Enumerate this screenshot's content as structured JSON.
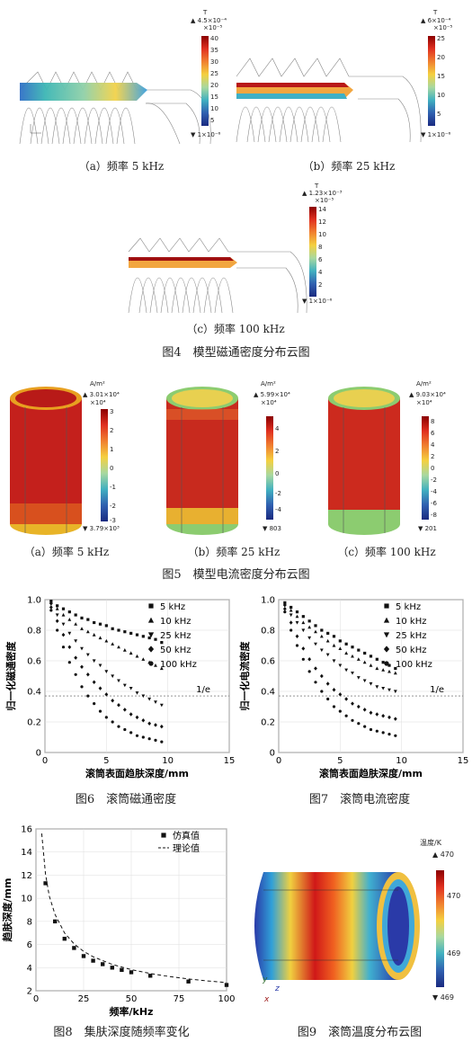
{
  "fig4": {
    "title": "图4　模型磁通密度分布云图",
    "panels": [
      {
        "caption": "（a）频率 5 kHz",
        "unit": "T",
        "max_label": "▲ 4.5×10⁻⁴",
        "exp": "×10⁻⁵",
        "ticks": [
          "40",
          "35",
          "30",
          "25",
          "20",
          "15",
          "10",
          "5"
        ],
        "min_label": "▼ 1×10⁻⁶"
      },
      {
        "caption": "（b）频率 25 kHz",
        "unit": "T",
        "max_label": "▲ 6×10⁻⁴",
        "exp": "×10⁻⁵",
        "ticks": [
          "25",
          "20",
          "15",
          "10",
          "5"
        ],
        "min_label": "▼ 1×10⁻⁶"
      },
      {
        "caption": "（c）频率 100 kHz",
        "unit": "T",
        "max_label": "▲ 1.23×10⁻³",
        "exp": "×10⁻⁵",
        "ticks": [
          "14",
          "12",
          "10",
          "8",
          "6",
          "4",
          "2"
        ],
        "min_label": "▼ 1×10⁻⁶"
      }
    ]
  },
  "fig5": {
    "title": "图5　模型电流密度分布云图",
    "panels": [
      {
        "caption": "（a）频率 5 kHz",
        "unit": "A/m²",
        "max_label": "▲ 3.01×10⁴",
        "exp": "×10⁴",
        "ticks": [
          "3",
          "2",
          "1",
          "0",
          "-1",
          "-2",
          "-3"
        ],
        "min_label": "▼ 3.79×10³"
      },
      {
        "caption": "（b）频率 25 kHz",
        "unit": "A/m²",
        "max_label": "▲ 5.99×10⁴",
        "exp": "×10⁴",
        "ticks": [
          "4",
          "2",
          "0",
          "-2",
          "-4"
        ],
        "min_label": "▼ 803"
      },
      {
        "caption": "（c）频率 100 kHz",
        "unit": "A/m²",
        "max_label": "▲ 9.03×10⁴",
        "exp": "×10⁴",
        "ticks": [
          "8",
          "6",
          "4",
          "2",
          "0",
          "-2",
          "-4",
          "-6",
          "-8"
        ],
        "min_label": "▼ 201"
      }
    ]
  },
  "fig6": {
    "caption": "图6　滚筒磁通密度"
  },
  "fig7": {
    "caption": "图7　滚筒电流密度"
  },
  "fig8": {
    "caption": "图8　集肤深度随频率变化"
  },
  "fig9": {
    "caption": "图9　滚筒温度分布云图",
    "unit": "温度/K",
    "max_label": "▲ 470",
    "ticks": [
      "470",
      "469"
    ],
    "min_label": "▼ 469",
    "axes": [
      "y",
      "z",
      "x"
    ]
  },
  "chart_data": [
    {
      "type": "scatter",
      "xlabel": "滚筒表面趋肤深度/mm",
      "ylabel": "归一化磁通密度",
      "xlim": [
        0,
        15
      ],
      "ylim": [
        0,
        1.0
      ],
      "xticks": [
        "0",
        "5",
        "10",
        "15"
      ],
      "yticks": [
        "0",
        "0.2",
        "0.4",
        "0.6",
        "0.8",
        "1.0"
      ],
      "reference_line": {
        "y": 0.37,
        "label": "1/e"
      },
      "legend_position": "top-right",
      "series": [
        {
          "name": "5 kHz",
          "marker": "square",
          "x": [
            0.5,
            1,
            1.5,
            2,
            2.5,
            3,
            3.5,
            4,
            4.5,
            5,
            5.5,
            6,
            6.5,
            7,
            7.5,
            8,
            8.5,
            9,
            9.5
          ],
          "values": [
            0.99,
            0.96,
            0.94,
            0.92,
            0.9,
            0.88,
            0.87,
            0.85,
            0.84,
            0.83,
            0.81,
            0.8,
            0.79,
            0.78,
            0.77,
            0.76,
            0.75,
            0.74,
            0.72
          ]
        },
        {
          "name": "10 kHz",
          "marker": "triangle",
          "x": [
            0.5,
            1,
            1.5,
            2,
            2.5,
            3,
            3.5,
            4,
            4.5,
            5,
            5.5,
            6,
            6.5,
            7,
            7.5,
            8,
            8.5,
            9,
            9.5
          ],
          "values": [
            0.98,
            0.94,
            0.9,
            0.87,
            0.84,
            0.81,
            0.79,
            0.77,
            0.75,
            0.73,
            0.71,
            0.69,
            0.67,
            0.65,
            0.63,
            0.61,
            0.59,
            0.57,
            0.55
          ]
        },
        {
          "name": "25 kHz",
          "marker": "triangle-down",
          "x": [
            0.5,
            1,
            1.5,
            2,
            2.5,
            3,
            3.5,
            4,
            4.5,
            5,
            5.5,
            6,
            6.5,
            7,
            7.5,
            8,
            8.5,
            9,
            9.5
          ],
          "values": [
            0.97,
            0.9,
            0.84,
            0.78,
            0.73,
            0.68,
            0.64,
            0.6,
            0.57,
            0.53,
            0.5,
            0.47,
            0.44,
            0.42,
            0.39,
            0.37,
            0.35,
            0.33,
            0.31
          ]
        },
        {
          "name": "50 kHz",
          "marker": "diamond",
          "x": [
            0.5,
            1,
            1.5,
            2,
            2.5,
            3,
            3.5,
            4,
            4.5,
            5,
            5.5,
            6,
            6.5,
            7,
            7.5,
            8,
            8.5,
            9,
            9.5
          ],
          "values": [
            0.95,
            0.86,
            0.77,
            0.69,
            0.62,
            0.56,
            0.51,
            0.46,
            0.42,
            0.38,
            0.34,
            0.31,
            0.28,
            0.25,
            0.23,
            0.21,
            0.19,
            0.18,
            0.17
          ]
        },
        {
          "name": "100 kHz",
          "marker": "circle",
          "x": [
            0.5,
            1,
            1.5,
            2,
            2.5,
            3,
            3.5,
            4,
            4.5,
            5,
            5.5,
            6,
            6.5,
            7,
            7.5,
            8,
            8.5,
            9,
            9.5
          ],
          "values": [
            0.93,
            0.8,
            0.69,
            0.59,
            0.51,
            0.43,
            0.37,
            0.32,
            0.27,
            0.23,
            0.2,
            0.17,
            0.15,
            0.13,
            0.11,
            0.1,
            0.09,
            0.08,
            0.07
          ]
        }
      ]
    },
    {
      "type": "scatter",
      "xlabel": "滚筒表面趋肤深度/mm",
      "ylabel": "归一化电流密度",
      "xlim": [
        0,
        15
      ],
      "ylim": [
        0,
        1.0
      ],
      "xticks": [
        "0",
        "5",
        "10",
        "15"
      ],
      "yticks": [
        "0",
        "0.2",
        "0.4",
        "0.6",
        "0.8",
        "1.0"
      ],
      "reference_line": {
        "y": 0.37,
        "label": "1/e"
      },
      "legend_position": "top-right",
      "series": [
        {
          "name": "5 kHz",
          "marker": "square",
          "x": [
            0.5,
            1,
            1.5,
            2,
            2.5,
            3,
            3.5,
            4,
            4.5,
            5,
            5.5,
            6,
            6.5,
            7,
            7.5,
            8,
            8.5,
            9,
            9.5
          ],
          "values": [
            0.98,
            0.95,
            0.92,
            0.89,
            0.86,
            0.83,
            0.8,
            0.78,
            0.76,
            0.73,
            0.71,
            0.69,
            0.67,
            0.65,
            0.63,
            0.61,
            0.59,
            0.57,
            0.55
          ]
        },
        {
          "name": "10 kHz",
          "marker": "triangle",
          "x": [
            0.5,
            1,
            1.5,
            2,
            2.5,
            3,
            3.5,
            4,
            4.5,
            5,
            5.5,
            6,
            6.5,
            7,
            7.5,
            8,
            8.5,
            9,
            9.5
          ],
          "values": [
            0.97,
            0.93,
            0.89,
            0.85,
            0.82,
            0.79,
            0.76,
            0.73,
            0.7,
            0.68,
            0.65,
            0.63,
            0.61,
            0.59,
            0.57,
            0.55,
            0.54,
            0.53,
            0.52
          ]
        },
        {
          "name": "25 kHz",
          "marker": "triangle-down",
          "x": [
            0.5,
            1,
            1.5,
            2,
            2.5,
            3,
            3.5,
            4,
            4.5,
            5,
            5.5,
            6,
            6.5,
            7,
            7.5,
            8,
            8.5,
            9,
            9.5
          ],
          "values": [
            0.96,
            0.9,
            0.85,
            0.8,
            0.75,
            0.71,
            0.67,
            0.64,
            0.6,
            0.57,
            0.54,
            0.52,
            0.49,
            0.47,
            0.45,
            0.43,
            0.42,
            0.41,
            0.4
          ]
        },
        {
          "name": "50 kHz",
          "marker": "diamond",
          "x": [
            0.5,
            1,
            1.5,
            2,
            2.5,
            3,
            3.5,
            4,
            4.5,
            5,
            5.5,
            6,
            6.5,
            7,
            7.5,
            8,
            8.5,
            9,
            9.5
          ],
          "values": [
            0.94,
            0.85,
            0.76,
            0.68,
            0.61,
            0.55,
            0.5,
            0.45,
            0.41,
            0.38,
            0.35,
            0.32,
            0.3,
            0.28,
            0.26,
            0.25,
            0.24,
            0.23,
            0.22
          ]
        },
        {
          "name": "100 kHz",
          "marker": "circle",
          "x": [
            0.5,
            1,
            1.5,
            2,
            2.5,
            3,
            3.5,
            4,
            4.5,
            5,
            5.5,
            6,
            6.5,
            7,
            7.5,
            8,
            8.5,
            9,
            9.5
          ],
          "values": [
            0.92,
            0.8,
            0.7,
            0.61,
            0.53,
            0.46,
            0.4,
            0.35,
            0.3,
            0.27,
            0.24,
            0.21,
            0.19,
            0.17,
            0.15,
            0.14,
            0.13,
            0.12,
            0.11
          ]
        }
      ]
    },
    {
      "type": "scatter",
      "xlabel": "频率/kHz",
      "ylabel": "趋肤深度/mm",
      "xlim": [
        0,
        100
      ],
      "ylim": [
        2,
        16
      ],
      "xticks": [
        "0",
        "25",
        "50",
        "75",
        "100"
      ],
      "yticks": [
        "2",
        "4",
        "6",
        "8",
        "10",
        "12",
        "14",
        "16"
      ],
      "legend_position": "top-right",
      "series": [
        {
          "name": "仿真值",
          "marker": "square",
          "x": [
            5,
            10,
            15,
            20,
            25,
            30,
            35,
            40,
            45,
            50,
            60,
            80,
            100
          ],
          "values": [
            11.3,
            8.0,
            6.5,
            5.7,
            5.0,
            4.6,
            4.3,
            4.0,
            3.8,
            3.6,
            3.3,
            2.8,
            2.5
          ]
        },
        {
          "name": "理论值",
          "marker": "dashed-line",
          "x": [
            3,
            5,
            7,
            10,
            15,
            20,
            25,
            30,
            40,
            50,
            60,
            70,
            80,
            90,
            100
          ],
          "values": [
            15.6,
            12.1,
            10.2,
            8.6,
            7.0,
            6.05,
            5.41,
            4.94,
            4.28,
            3.83,
            3.49,
            3.23,
            3.02,
            2.85,
            2.71
          ]
        }
      ]
    }
  ]
}
